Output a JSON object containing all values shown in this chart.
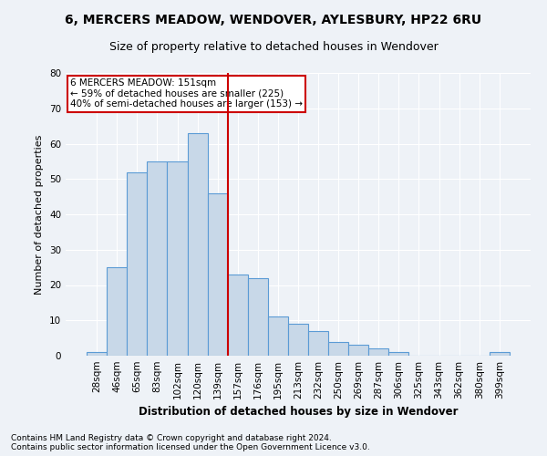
{
  "title1": "6, MERCERS MEADOW, WENDOVER, AYLESBURY, HP22 6RU",
  "title2": "Size of property relative to detached houses in Wendover",
  "xlabel": "Distribution of detached houses by size in Wendover",
  "ylabel": "Number of detached properties",
  "categories": [
    "28sqm",
    "46sqm",
    "65sqm",
    "83sqm",
    "102sqm",
    "120sqm",
    "139sqm",
    "157sqm",
    "176sqm",
    "195sqm",
    "213sqm",
    "232sqm",
    "250sqm",
    "269sqm",
    "287sqm",
    "306sqm",
    "325sqm",
    "343sqm",
    "362sqm",
    "380sqm",
    "399sqm"
  ],
  "values": [
    1,
    25,
    52,
    55,
    55,
    63,
    46,
    23,
    22,
    11,
    9,
    7,
    4,
    3,
    2,
    1,
    0,
    0,
    0,
    0,
    1
  ],
  "bar_color": "#c8d8e8",
  "bar_edge_color": "#5b9bd5",
  "vline_x": 6.5,
  "vline_color": "#cc0000",
  "annotation_line1": "6 MERCERS MEADOW: 151sqm",
  "annotation_line2": "← 59% of detached houses are smaller (225)",
  "annotation_line3": "40% of semi-detached houses are larger (153) →",
  "annotation_box_color": "#ffffff",
  "annotation_box_edge": "#cc0000",
  "background_color": "#eef2f7",
  "grid_color": "#ffffff",
  "footnote1": "Contains HM Land Registry data © Crown copyright and database right 2024.",
  "footnote2": "Contains public sector information licensed under the Open Government Licence v3.0.",
  "ylim": [
    0,
    80
  ],
  "yticks": [
    0,
    10,
    20,
    30,
    40,
    50,
    60,
    70,
    80
  ],
  "title1_fontsize": 10,
  "title2_fontsize": 9,
  "xlabel_fontsize": 8.5,
  "ylabel_fontsize": 8,
  "tick_fontsize": 7.5,
  "footnote_fontsize": 6.5,
  "annot_fontsize": 7.5
}
